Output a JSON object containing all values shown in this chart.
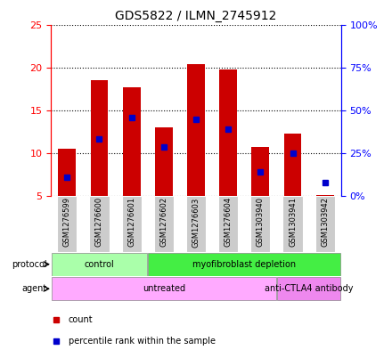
{
  "title": "GDS5822 / ILMN_2745912",
  "samples": [
    "GSM1276599",
    "GSM1276600",
    "GSM1276601",
    "GSM1276602",
    "GSM1276603",
    "GSM1276604",
    "GSM1303940",
    "GSM1303941",
    "GSM1303942"
  ],
  "count_values": [
    10.5,
    18.5,
    17.7,
    13.0,
    20.4,
    19.8,
    10.7,
    12.3,
    5.1
  ],
  "percentile_values": [
    7.2,
    11.7,
    14.1,
    10.7,
    13.9,
    12.8,
    7.8,
    10.0,
    6.6
  ],
  "bar_bottom": 5.0,
  "ylim_left": [
    5,
    25
  ],
  "ylim_right": [
    0,
    100
  ],
  "yticks_left": [
    5,
    10,
    15,
    20,
    25
  ],
  "yticks_right": [
    0,
    25,
    50,
    75,
    100
  ],
  "ytick_labels_right": [
    "0%",
    "25%",
    "50%",
    "75%",
    "100%"
  ],
  "bar_color": "#cc0000",
  "blue_color": "#0000cc",
  "protocol_groups": [
    {
      "label": "control",
      "start": 0,
      "end": 3,
      "color": "#aaffaa"
    },
    {
      "label": "myofibroblast depletion",
      "start": 3,
      "end": 9,
      "color": "#44ee44"
    }
  ],
  "agent_groups": [
    {
      "label": "untreated",
      "start": 0,
      "end": 7,
      "color": "#ffaaff"
    },
    {
      "label": "anti-CTLA4 antibody",
      "start": 7,
      "end": 9,
      "color": "#ee88ee"
    }
  ],
  "legend_count_label": "count",
  "legend_pct_label": "percentile rank within the sample",
  "bar_width": 0.55,
  "sample_box_color": "#cccccc",
  "spine_color_left": "red",
  "spine_color_right": "blue",
  "title_fontsize": 10,
  "tick_fontsize": 8,
  "label_fontsize": 7,
  "legend_fontsize": 7
}
